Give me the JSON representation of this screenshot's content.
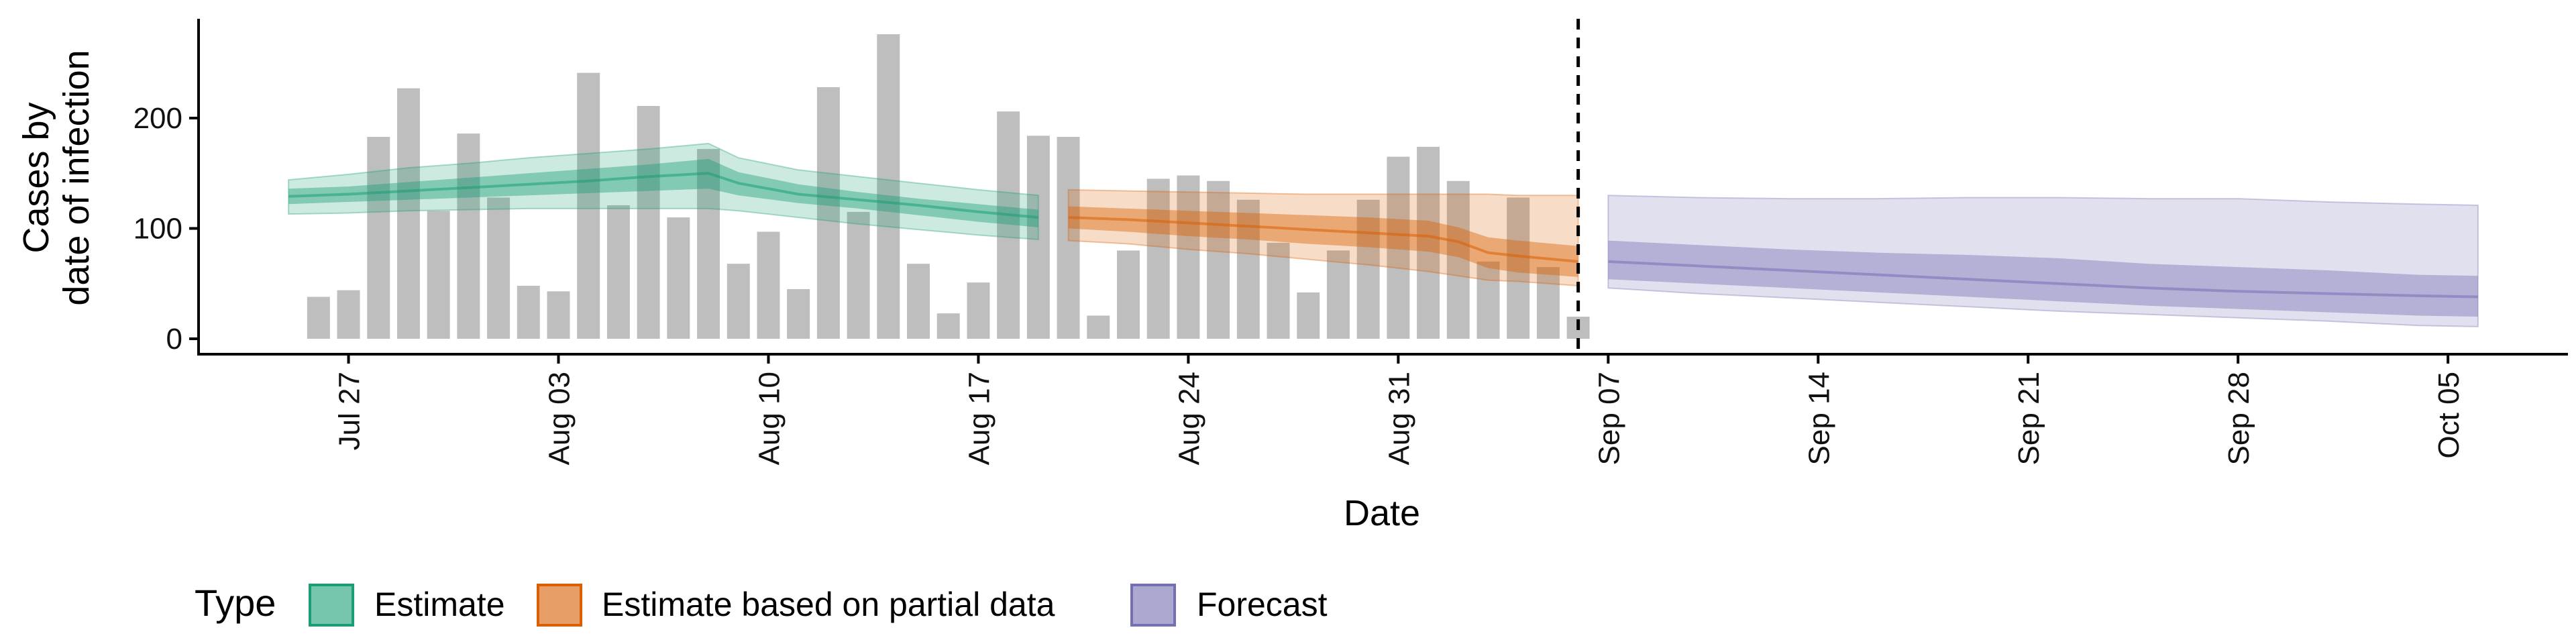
{
  "chart_data": {
    "type": "bar",
    "xlabel": "Date",
    "ylabel": [
      "Cases by",
      "date of infection"
    ],
    "ylim": [
      0,
      290
    ],
    "y_ticks": [
      0,
      100,
      200
    ],
    "x_ticks": [
      {
        "date": "2020-07-27",
        "label": "Jul 27"
      },
      {
        "date": "2020-08-03",
        "label": "Aug 03"
      },
      {
        "date": "2020-08-10",
        "label": "Aug 10"
      },
      {
        "date": "2020-08-17",
        "label": "Aug 17"
      },
      {
        "date": "2020-08-24",
        "label": "Aug 24"
      },
      {
        "date": "2020-08-31",
        "label": "Aug 31"
      },
      {
        "date": "2020-09-07",
        "label": "Sep 07"
      },
      {
        "date": "2020-09-14",
        "label": "Sep 14"
      },
      {
        "date": "2020-09-21",
        "label": "Sep 21"
      },
      {
        "date": "2020-09-28",
        "label": "Sep 28"
      },
      {
        "date": "2020-10-05",
        "label": "Oct 05"
      }
    ],
    "x_range": [
      "2020-07-22",
      "2020-10-09"
    ],
    "forecast_start": "2020-09-06",
    "grid": false,
    "legend_position": "bottom",
    "bar_color": "#bebebe",
    "observed_cases": {
      "dates": [
        "2020-07-26",
        "2020-07-27",
        "2020-07-28",
        "2020-07-29",
        "2020-07-30",
        "2020-07-31",
        "2020-08-01",
        "2020-08-02",
        "2020-08-03",
        "2020-08-04",
        "2020-08-05",
        "2020-08-06",
        "2020-08-07",
        "2020-08-08",
        "2020-08-09",
        "2020-08-10",
        "2020-08-11",
        "2020-08-12",
        "2020-08-13",
        "2020-08-14",
        "2020-08-15",
        "2020-08-16",
        "2020-08-17",
        "2020-08-18",
        "2020-08-19",
        "2020-08-20",
        "2020-08-21",
        "2020-08-22",
        "2020-08-23",
        "2020-08-24",
        "2020-08-25",
        "2020-08-26",
        "2020-08-27",
        "2020-08-28",
        "2020-08-29",
        "2020-08-30",
        "2020-08-31",
        "2020-09-01",
        "2020-09-02",
        "2020-09-03",
        "2020-09-04",
        "2020-09-05",
        "2020-09-06"
      ],
      "values": [
        38,
        44,
        183,
        227,
        116,
        186,
        128,
        48,
        43,
        241,
        121,
        211,
        110,
        172,
        68,
        97,
        45,
        228,
        115,
        276,
        68,
        23,
        51,
        206,
        184,
        183,
        21,
        80,
        145,
        148,
        143,
        126,
        87,
        42,
        80,
        126,
        165,
        174,
        143,
        70,
        128,
        65,
        20
      ]
    },
    "legend": {
      "title": "Type",
      "items": [
        {
          "label": "Estimate",
          "color": "#1b9e77"
        },
        {
          "label": "Estimate based on partial data",
          "color": "#d95f02"
        },
        {
          "label": "Forecast",
          "color": "#7570b3"
        }
      ]
    },
    "series": [
      {
        "name": "Estimate",
        "color": "#1b9e77",
        "dates": [
          "2020-07-25",
          "2020-07-27",
          "2020-07-29",
          "2020-07-31",
          "2020-08-02",
          "2020-08-04",
          "2020-08-06",
          "2020-08-08",
          "2020-08-09",
          "2020-08-11",
          "2020-08-13",
          "2020-08-15",
          "2020-08-17",
          "2020-08-19"
        ],
        "median": [
          129,
          131,
          134,
          137,
          140,
          143,
          147,
          150,
          141,
          131,
          126,
          121,
          115,
          110
        ],
        "inner_lower": [
          122,
          124,
          126,
          128,
          130,
          132,
          134,
          136,
          130,
          123,
          118,
          112,
          106,
          101
        ],
        "inner_upper": [
          136,
          138,
          142,
          146,
          150,
          154,
          158,
          163,
          151,
          140,
          133,
          127,
          122,
          117
        ],
        "outer_lower": [
          113,
          114,
          116,
          117,
          118,
          118,
          118,
          118,
          116,
          110,
          104,
          99,
          94,
          90
        ],
        "outer_upper": [
          144,
          149,
          155,
          159,
          164,
          168,
          172,
          177,
          164,
          153,
          147,
          141,
          135,
          130
        ]
      },
      {
        "name": "Estimate based on partial data",
        "color": "#d95f02",
        "dates": [
          "2020-08-20",
          "2020-08-22",
          "2020-08-24",
          "2020-08-26",
          "2020-08-28",
          "2020-08-30",
          "2020-09-01",
          "2020-09-02",
          "2020-09-03",
          "2020-09-04",
          "2020-09-06"
        ],
        "median": [
          110,
          108,
          105,
          102,
          99,
          96,
          93,
          88,
          78,
          75,
          70
        ],
        "inner_lower": [
          100,
          97,
          93,
          90,
          86,
          83,
          79,
          74,
          64,
          60,
          56
        ],
        "inner_upper": [
          120,
          118,
          116,
          114,
          112,
          110,
          107,
          101,
          92,
          89,
          84
        ],
        "outer_lower": [
          89,
          86,
          81,
          77,
          72,
          67,
          61,
          57,
          53,
          52,
          48
        ],
        "outer_upper": [
          135,
          134,
          133,
          132,
          131,
          131,
          131,
          131,
          131,
          130,
          130
        ]
      },
      {
        "name": "Forecast",
        "color": "#7570b3",
        "dates": [
          "2020-09-07",
          "2020-09-10",
          "2020-09-13",
          "2020-09-16",
          "2020-09-19",
          "2020-09-22",
          "2020-09-25",
          "2020-09-28",
          "2020-10-01",
          "2020-10-04",
          "2020-10-06"
        ],
        "median": [
          70,
          66,
          62,
          58,
          54,
          50,
          46,
          43,
          41,
          39,
          38
        ],
        "inner_lower": [
          54,
          50,
          46,
          42,
          38,
          34,
          30,
          27,
          24,
          21,
          20
        ],
        "inner_upper": [
          89,
          85,
          81,
          78,
          76,
          73,
          68,
          65,
          62,
          58,
          57
        ],
        "outer_lower": [
          46,
          41,
          37,
          33,
          29,
          25,
          22,
          19,
          16,
          12,
          11
        ],
        "outer_upper": [
          130,
          128,
          127,
          127,
          128,
          128,
          127,
          127,
          124,
          122,
          121
        ]
      }
    ]
  }
}
